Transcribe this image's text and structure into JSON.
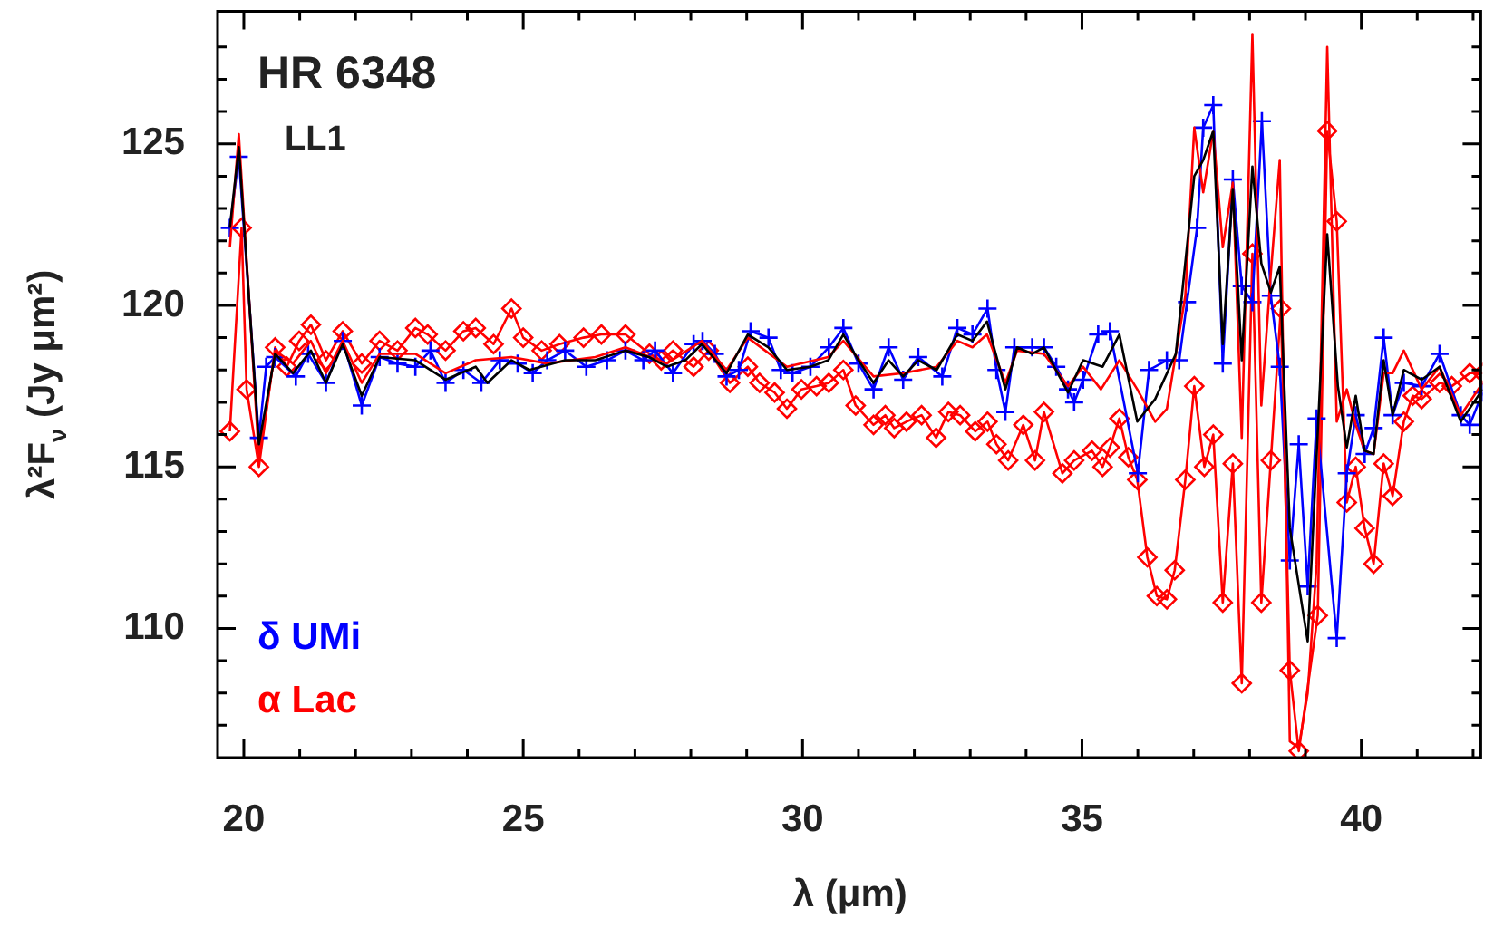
{
  "chart_data": {
    "type": "line",
    "title": "HR 6348",
    "subtitle": "LL1",
    "xlabel": "λ (μm)",
    "ylabel": "λ²F$_{ν}$ (Jy μm²)",
    "xlim": [
      19.53,
      42.17
    ],
    "ylim": [
      106,
      129.1
    ],
    "xticks": [
      20,
      {
        "value": 21,
        "label": null
      },
      {
        "value": 22,
        "label": null
      },
      {
        "value": 23,
        "label": null
      },
      {
        "value": 24,
        "label": null
      },
      25,
      {
        "value": 26,
        "label": null
      },
      {
        "value": 27,
        "label": null
      },
      {
        "value": 28,
        "label": null
      },
      {
        "value": 29,
        "label": null
      },
      30,
      {
        "value": 31,
        "label": null
      },
      {
        "value": 32,
        "label": null
      },
      {
        "value": 33,
        "label": null
      },
      {
        "value": 34,
        "label": null
      },
      35,
      {
        "value": 36,
        "label": null
      },
      {
        "value": 37,
        "label": null
      },
      {
        "value": 38,
        "label": null
      },
      {
        "value": 39,
        "label": null
      },
      40,
      {
        "value": 41,
        "label": null
      },
      {
        "value": 42,
        "label": null
      }
    ],
    "yticks": [
      {
        "value": 107,
        "label": null
      },
      {
        "value": 108,
        "label": null
      },
      {
        "value": 109,
        "label": null
      },
      110,
      {
        "value": 111,
        "label": null
      },
      {
        "value": 112,
        "label": null
      },
      {
        "value": 113,
        "label": null
      },
      {
        "value": 114,
        "label": null
      },
      115,
      {
        "value": 116,
        "label": null
      },
      {
        "value": 117,
        "label": null
      },
      {
        "value": 118,
        "label": null
      },
      {
        "value": 119,
        "label": null
      },
      120,
      {
        "value": 121,
        "label": null
      },
      {
        "value": 122,
        "label": null
      },
      {
        "value": 123,
        "label": null
      },
      {
        "value": 124,
        "label": null
      },
      125,
      {
        "value": 126,
        "label": null
      },
      {
        "value": 127,
        "label": null
      },
      {
        "value": 128,
        "label": null
      }
    ],
    "legend": "bottom left",
    "series": [
      {
        "color": "#000000",
        "marker": "none",
        "x": [
          19.75,
          19.91,
          20.27,
          20.56,
          20.88,
          21.2,
          21.47,
          21.77,
          22.11,
          22.43,
          23.07,
          23.61,
          24.15,
          24.36,
          24.79,
          25.11,
          25.75,
          26.29,
          26.83,
          27.25,
          27.57,
          27.9,
          28.2,
          28.64,
          29.02,
          29.39,
          29.72,
          30.14,
          30.46,
          30.73,
          31.0,
          31.27,
          31.54,
          31.8,
          32.07,
          32.4,
          32.77,
          33.04,
          33.3,
          33.63,
          33.84,
          34.11,
          34.32,
          34.75,
          35.02,
          35.37,
          35.67,
          35.99,
          36.31,
          36.68,
          37.01,
          37.17,
          37.35,
          37.52,
          37.7,
          37.86,
          38.05,
          38.21,
          38.38,
          38.54,
          38.72,
          39.04,
          39.39,
          39.58,
          39.74,
          39.9,
          40.06,
          40.22,
          40.4,
          40.56,
          40.76,
          41.08,
          41.4,
          41.78,
          42.17
        ],
        "values": [
          122.4,
          124.9,
          115.7,
          118.5,
          117.9,
          118.6,
          117.6,
          118.8,
          117.2,
          118.4,
          118.3,
          117.7,
          118.1,
          117.6,
          118.3,
          118.0,
          118.3,
          118.3,
          118.6,
          118.4,
          118.1,
          118.3,
          118.8,
          117.9,
          119.1,
          118.7,
          118.0,
          118.1,
          118.3,
          119.1,
          118.3,
          117.6,
          118.3,
          117.8,
          118.3,
          118.0,
          119.1,
          118.9,
          119.5,
          117.4,
          118.7,
          118.5,
          118.7,
          117.3,
          118.3,
          118.1,
          119.1,
          116.4,
          117.1,
          118.5,
          124.0,
          124.5,
          125.4,
          118.8,
          123.6,
          118.3,
          124.3,
          121.3,
          120.4,
          121.2,
          113.1,
          109.6,
          122.2,
          117.5,
          115.6,
          117.2,
          115.5,
          115.4,
          118.3,
          116.6,
          118.0,
          117.7,
          118.1,
          116.4,
          117.4
        ]
      },
      {
        "color": "#ff0000",
        "marker": "none",
        "x": [
          19.75,
          19.91,
          20.27,
          20.56,
          20.88,
          21.2,
          21.47,
          21.77,
          22.11,
          22.43,
          23.07,
          23.61,
          24.15,
          24.79,
          25.43,
          26.29,
          26.83,
          27.57,
          28.2,
          28.64,
          29.02,
          29.72,
          30.46,
          30.73,
          31.27,
          31.8,
          32.4,
          32.77,
          33.04,
          33.3,
          33.63,
          33.84,
          34.32,
          34.75,
          35.02,
          35.34,
          35.67,
          35.99,
          36.31,
          36.52,
          36.85,
          37.01,
          37.17,
          37.35,
          37.52,
          37.7,
          37.86,
          38.05,
          38.21,
          38.38,
          38.54,
          38.72,
          38.88,
          39.04,
          39.2,
          39.39,
          39.56,
          39.74,
          39.9,
          40.06,
          40.22,
          40.4,
          40.56,
          40.76,
          41.08,
          41.4,
          41.78,
          42.17
        ],
        "values": [
          121.8,
          125.3,
          115.3,
          118.6,
          118.2,
          118.9,
          117.9,
          118.9,
          117.6,
          118.5,
          118.5,
          117.9,
          118.3,
          118.4,
          118.2,
          118.4,
          118.7,
          118.2,
          118.9,
          118.0,
          119.0,
          118.1,
          118.4,
          118.9,
          117.8,
          117.9,
          118.1,
          118.9,
          118.7,
          119.1,
          117.6,
          118.6,
          118.5,
          117.5,
          118.1,
          117.4,
          118.3,
          117.4,
          116.4,
          116.8,
          120.3,
          125.5,
          123.5,
          125.4,
          121.8,
          123.8,
          115.9,
          128.4,
          116.9,
          121.0,
          124.5,
          106.5,
          106.3,
          108.0,
          112.0,
          128.0,
          116.4,
          117.4,
          116.3,
          115.5,
          115.4,
          117.9,
          117.9,
          118.6,
          117.4,
          118.1,
          116.6,
          117.6
        ]
      },
      {
        "name": "δ UMi",
        "color": "#0000ff",
        "marker": "cross",
        "x": [
          19.75,
          19.91,
          20.27,
          20.4,
          20.56,
          20.93,
          21.15,
          21.47,
          21.77,
          22.11,
          22.43,
          22.75,
          23.07,
          23.34,
          23.61,
          23.93,
          24.25,
          24.58,
          24.9,
          25.17,
          25.43,
          25.75,
          26.13,
          26.5,
          26.83,
          27.15,
          27.36,
          27.68,
          28.05,
          28.21,
          28.43,
          28.64,
          28.86,
          29.07,
          29.39,
          29.61,
          29.82,
          30.14,
          30.47,
          30.73,
          31.0,
          31.27,
          31.54,
          31.8,
          32.07,
          32.5,
          32.77,
          33.04,
          33.31,
          33.47,
          33.63,
          33.79,
          34.11,
          34.32,
          34.54,
          34.75,
          34.86,
          35.02,
          35.29,
          35.5,
          36.0,
          36.2,
          36.52,
          36.74,
          36.88,
          37.06,
          37.17,
          37.35,
          37.52,
          37.7,
          37.86,
          38.05,
          38.22,
          38.38,
          38.54,
          38.72,
          38.88,
          39.04,
          39.2,
          39.56,
          39.74,
          39.9,
          40.06,
          40.22,
          40.4,
          40.56,
          40.76,
          41.08,
          41.4,
          41.78,
          41.94,
          42.17
        ],
        "values": [
          122.4,
          124.6,
          115.9,
          118.1,
          118.4,
          117.8,
          118.5,
          117.6,
          118.9,
          116.9,
          118.4,
          118.2,
          118.1,
          118.6,
          117.6,
          118.0,
          117.6,
          118.3,
          118.2,
          117.9,
          118.3,
          118.6,
          118.1,
          118.3,
          118.6,
          118.3,
          118.6,
          117.9,
          118.8,
          118.9,
          118.5,
          117.8,
          118.0,
          119.2,
          119.0,
          118.0,
          117.9,
          118.1,
          118.7,
          119.3,
          118.2,
          117.4,
          118.7,
          117.7,
          118.4,
          117.8,
          119.3,
          119.1,
          119.9,
          118.0,
          116.7,
          118.7,
          118.7,
          118.7,
          118.1,
          117.4,
          117.0,
          117.7,
          119.1,
          119.2,
          114.8,
          118.0,
          118.3,
          118.3,
          120.1,
          122.4,
          125.5,
          126.2,
          118.2,
          123.9,
          120.6,
          120.1,
          125.7,
          120.3,
          118.1,
          112.1,
          115.7,
          111.3,
          116.5,
          109.7,
          114.8,
          116.6,
          115.4,
          116.2,
          119.0,
          116.6,
          117.6,
          117.5,
          118.5,
          116.6,
          116.3,
          117.3
        ]
      },
      {
        "name": "α Lac",
        "color": "#ff0000",
        "marker": "diamond",
        "x": [
          19.75,
          19.96,
          20.05,
          20.27,
          20.56,
          20.77,
          20.99,
          21.2,
          21.47,
          21.77,
          22.11,
          22.43,
          22.75,
          23.07,
          23.29,
          23.61,
          23.93,
          24.15,
          24.47,
          24.79,
          25.0,
          25.33,
          25.65,
          26.08,
          26.4,
          26.83,
          27.26,
          27.47,
          27.68,
          28.05,
          28.32,
          28.7,
          29.02,
          29.23,
          29.5,
          29.72,
          29.98,
          30.25,
          30.47,
          30.73,
          30.95,
          31.27,
          31.48,
          31.64,
          31.86,
          32.13,
          32.39,
          32.61,
          32.82,
          33.09,
          33.31,
          33.47,
          33.68,
          33.95,
          34.16,
          34.32,
          34.65,
          34.86,
          35.18,
          35.37,
          35.5,
          35.67,
          35.83,
          35.99,
          36.17,
          36.34,
          36.52,
          36.66,
          36.85,
          37.01,
          37.19,
          37.35,
          37.52,
          37.7,
          37.86,
          38.05,
          38.21,
          38.38,
          38.56,
          38.72,
          38.88,
          39.22,
          39.39,
          39.56,
          39.74,
          39.9,
          40.06,
          40.22,
          40.4,
          40.56,
          40.76,
          40.92,
          41.08,
          41.4,
          41.62,
          41.94,
          42.17
        ],
        "values": [
          116.1,
          122.4,
          117.4,
          115.0,
          118.7,
          118.1,
          118.9,
          119.4,
          118.3,
          119.2,
          118.2,
          118.9,
          118.6,
          119.3,
          119.1,
          118.6,
          119.2,
          119.3,
          118.8,
          119.9,
          119.0,
          118.6,
          118.8,
          119.0,
          119.1,
          119.1,
          118.5,
          118.3,
          118.6,
          118.1,
          118.6,
          117.6,
          118.1,
          117.6,
          117.3,
          116.8,
          117.4,
          117.5,
          117.6,
          118.0,
          116.9,
          116.3,
          116.6,
          116.2,
          116.4,
          116.6,
          115.9,
          116.7,
          116.6,
          116.1,
          116.4,
          115.7,
          115.2,
          116.3,
          115.2,
          116.7,
          114.8,
          115.2,
          115.5,
          115.0,
          115.6,
          116.5,
          115.3,
          114.6,
          112.2,
          111.0,
          110.9,
          111.8,
          114.6,
          117.5,
          115.0,
          116.0,
          110.8,
          115.1,
          108.3,
          121.6,
          110.8,
          115.2,
          119.9,
          108.7,
          106.2,
          110.4,
          125.4,
          122.6,
          113.9,
          115.0,
          113.1,
          112.0,
          115.1,
          114.1,
          116.4,
          117.2,
          117.1,
          117.6,
          117.5,
          117.9,
          117.9
        ]
      }
    ]
  }
}
